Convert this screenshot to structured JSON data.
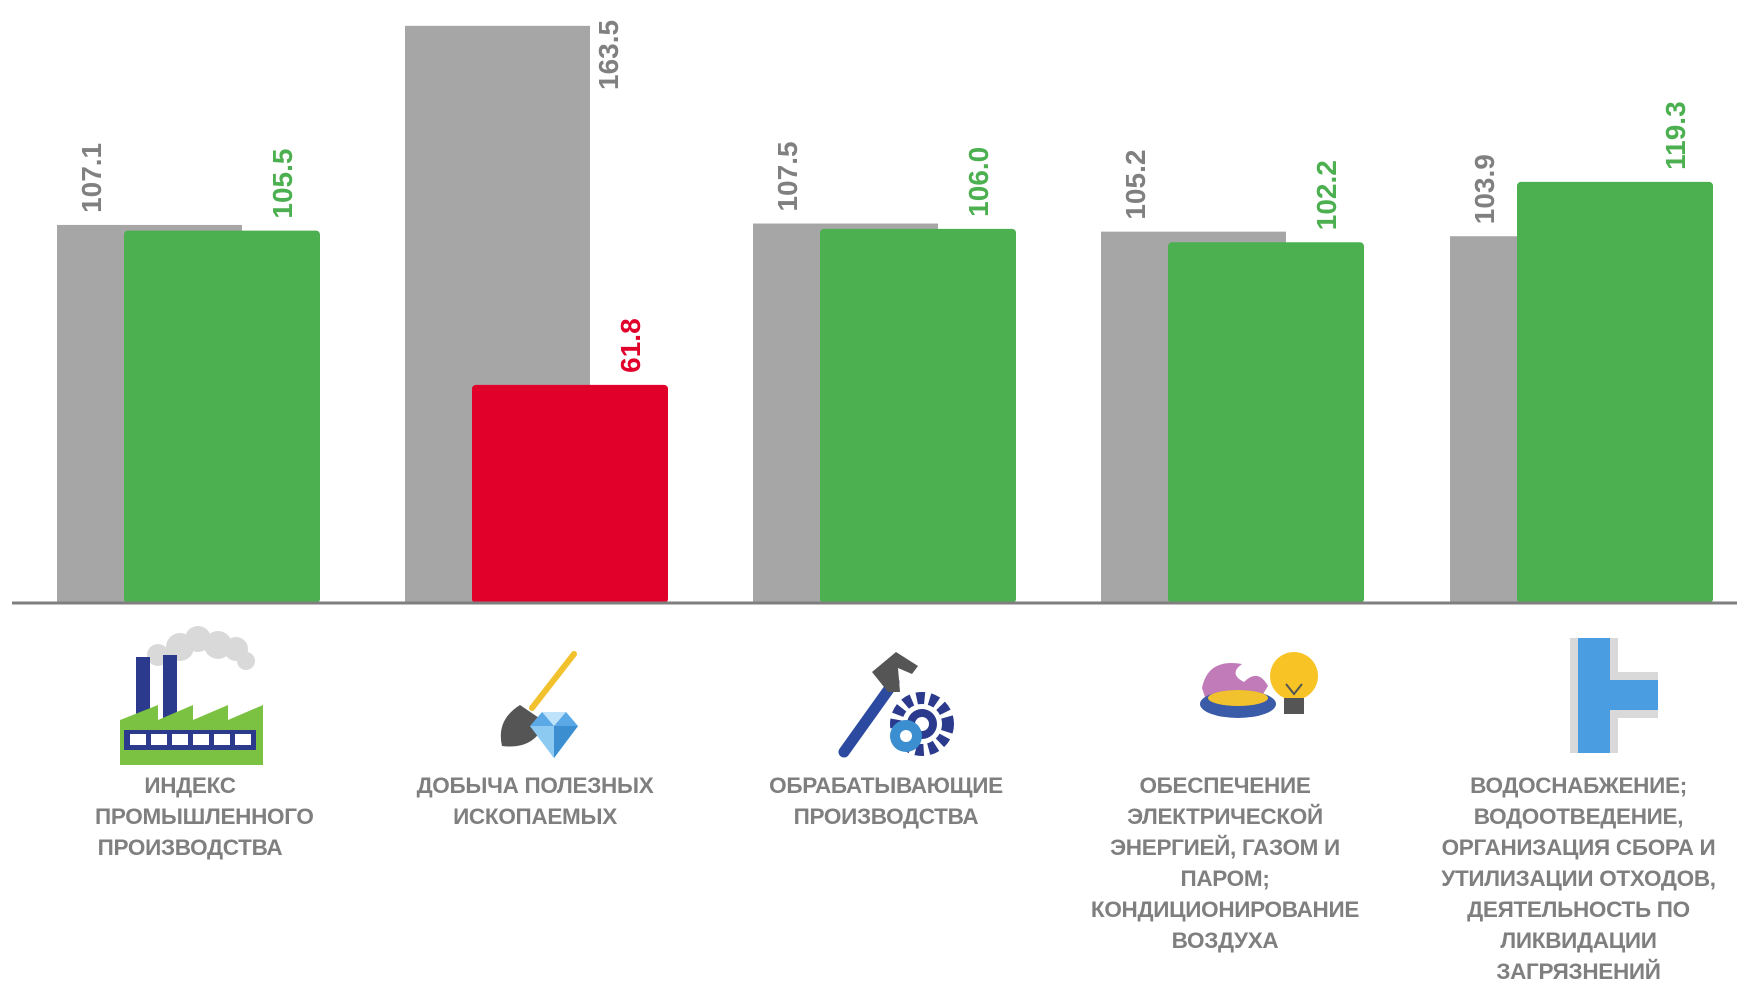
{
  "chart_data": {
    "type": "bar",
    "categories": [
      "ИНДЕКС ПРОМЫШЛЕННОГО ПРОИЗВОДСТВА",
      "ДОБЫЧА ПОЛЕЗНЫХ ИСКОПАЕМЫХ",
      "ОБРАБАТЫВАЮЩИЕ ПРОИЗВОДСТВА",
      "ОБЕСПЕЧЕНИЕ ЭЛЕКТРИЧЕСКОЙ ЭНЕРГИЕЙ, ГАЗОМ И ПАРОМ; КОНДИЦИОНИРОВАНИЕ ВОЗДУХА",
      "ВОДОСНАБЖЕНИЕ; ВОДООТВЕДЕНИЕ, ОРГАНИЗАЦИЯ СБОРА И УТИЛИЗАЦИИ ОТХОДОВ, ДЕЯТЕЛЬНОСТЬ ПО ЛИКВИДАЦИИ ЗАГРЯЗНЕНИЙ"
    ],
    "series": [
      {
        "values": [
          107.1,
          163.5,
          107.5,
          105.2,
          103.9
        ],
        "labels": [
          "107.1",
          "163.5",
          "107.5",
          "105.2",
          "103.9"
        ]
      },
      {
        "values": [
          105.5,
          61.8,
          106.0,
          102.2,
          119.3
        ],
        "labels": [
          "105.5",
          "61.8",
          "106.0",
          "102.2",
          "119.3"
        ]
      }
    ],
    "bar_colors": {
      "first_series": "#a6a6a6",
      "increase": "#4caf50",
      "decrease": "#e0002a"
    },
    "label_colors": {
      "first_series": "#808080",
      "increase": "#4caf50",
      "decrease": "#e0002a"
    },
    "title": "",
    "xlabel": "",
    "ylabel": "",
    "ylim": [
      0,
      170
    ],
    "grid": false,
    "legend": "none",
    "icons": [
      "factory-icon",
      "shovel-gem-icon",
      "hammer-gear-icon",
      "gas-bulb-icon",
      "water-pipe-icon"
    ]
  }
}
